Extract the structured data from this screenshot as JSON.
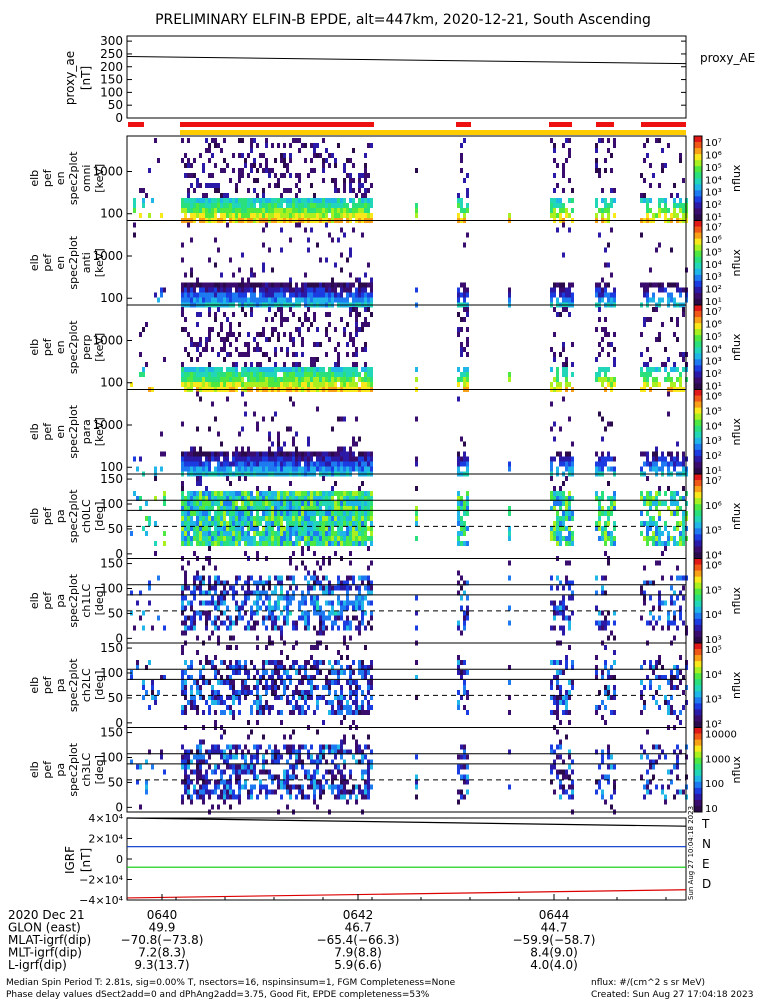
{
  "title": "PRELIMINARY ELFIN-B EPDE, alt=447km, 2020-12-21, South Ascending",
  "proxy_panel": {
    "ylabel": "proxy_ae",
    "yunit": "[nT]",
    "yticks": [
      "300",
      "250",
      "200",
      "150",
      "100",
      "50",
      "0"
    ],
    "series_label": "proxy_AE"
  },
  "spec_panels": [
    {
      "ylabel": [
        "elb",
        "pef",
        "en",
        "spec2plot",
        "omni",
        "[keV]"
      ],
      "yticks": [
        "1000",
        "100"
      ],
      "cbar_ticks": [
        "10⁷",
        "10⁶",
        "10⁵",
        "10⁴",
        "10³",
        "10²",
        "10¹"
      ],
      "cbar_label": "nflux"
    },
    {
      "ylabel": [
        "elb",
        "pef",
        "en",
        "spec2plot",
        "anti",
        "[keV]"
      ],
      "yticks": [
        "1000",
        "100"
      ],
      "cbar_ticks": [
        "10⁷",
        "10⁶",
        "10⁵",
        "10⁴",
        "10³",
        "10²",
        "10¹"
      ],
      "cbar_label": "nflux"
    },
    {
      "ylabel": [
        "elb",
        "pef",
        "en",
        "spec2plot",
        "perp",
        "[keV]"
      ],
      "yticks": [
        "1000",
        "100"
      ],
      "cbar_ticks": [
        "10⁷",
        "10⁶",
        "10⁵",
        "10⁴",
        "10³",
        "10²",
        "10¹"
      ],
      "cbar_label": "nflux"
    },
    {
      "ylabel": [
        "elb",
        "pef",
        "en",
        "spec2plot",
        "para",
        "[keV]"
      ],
      "yticks": [
        "1000",
        "100"
      ],
      "cbar_ticks": [
        "10⁶",
        "10⁵",
        "10⁴",
        "10³",
        "10²",
        "10¹"
      ],
      "cbar_label": "nflux"
    },
    {
      "ylabel": [
        "elb",
        "pef",
        "pa",
        "spec2plot",
        "ch0LC",
        "[deg]"
      ],
      "yticks": [
        "150",
        "100",
        "50",
        "0"
      ],
      "cbar_ticks": [
        "10⁷",
        "10⁶",
        "10⁵",
        "10⁴"
      ],
      "cbar_label": "nflux"
    },
    {
      "ylabel": [
        "elb",
        "pef",
        "pa",
        "spec2plot",
        "ch1LC",
        "[deg]"
      ],
      "yticks": [
        "150",
        "100",
        "50",
        "0"
      ],
      "cbar_ticks": [
        "10⁶",
        "10⁵",
        "10⁴",
        "10³"
      ],
      "cbar_label": "nflux"
    },
    {
      "ylabel": [
        "elb",
        "pef",
        "pa",
        "spec2plot",
        "ch2LC",
        "[deg]"
      ],
      "yticks": [
        "150",
        "100",
        "50",
        "0"
      ],
      "cbar_ticks": [
        "10⁵",
        "10⁴",
        "10³",
        "10²"
      ],
      "cbar_label": "nflux"
    },
    {
      "ylabel": [
        "elb",
        "pef",
        "pa",
        "spec2plot",
        "ch3LC",
        "[deg]"
      ],
      "yticks": [
        "150",
        "100",
        "50",
        "0"
      ],
      "cbar_ticks": [
        "10000",
        "1000",
        "100",
        "10"
      ],
      "cbar_label": "nflux"
    }
  ],
  "igrf_panel": {
    "ylabel": "IGRF",
    "yunit": "[nT]",
    "yticks": [
      "4×10⁴",
      "2×10⁴",
      "0",
      "−2×10⁴",
      "−4×10⁴"
    ],
    "legend": [
      {
        "label": "T",
        "color": "#000000"
      },
      {
        "label": "N",
        "color": "#0033cc"
      },
      {
        "label": "E",
        "color": "#00cc00"
      },
      {
        "label": "D",
        "color": "#dd0000"
      }
    ],
    "side_stamp": "Sun Aug 27 10:04:18 2023"
  },
  "time_axis": {
    "row_labels": [
      "2020 Dec 21",
      "GLON (east)",
      "MLAT-igrf(dip)",
      "MLT-igrf(dip)",
      "L-igrf(dip)"
    ],
    "columns": [
      {
        "values": [
          "0640",
          "49.9",
          "−70.8(−73.8)",
          "7.2(8.3)",
          "9.3(13.7)"
        ]
      },
      {
        "values": [
          "0642",
          "46.7",
          "−65.4(−66.3)",
          "7.9(8.8)",
          "5.9(6.6)"
        ]
      },
      {
        "values": [
          "0644",
          "44.7",
          "−59.9(−58.7)",
          "8.4(9.0)",
          "4.0(4.0)"
        ]
      }
    ]
  },
  "footer": {
    "line1_left": "Median Spin Period T: 2.81s, sig=0.00% T, nsectors=16, nspinsinsum=1, FGM Completeness=None",
    "line2_left": "Phase delay values dSect2add=0 and dPhAng2add=3.75, Good Fit, EPDE completeness=53%",
    "line1_right": "nflux: #/(cm^2 s sr MeV)",
    "line2_right": "Created: Sun Aug 27 17:04:18 2023"
  },
  "colors": {
    "proxy_line": "#000000",
    "red_bar": "#ee1111",
    "yellow_bar": "#ffcc00",
    "igrf_T": "#000000",
    "igrf_N": "#0033cc",
    "igrf_E": "#00cc00",
    "igrf_D": "#dd0000"
  },
  "chart_data": [
    {
      "type": "line",
      "series": [
        {
          "name": "proxy_AE",
          "x": [
            "06:39:00",
            "06:46:00"
          ],
          "values": [
            240,
            212
          ]
        }
      ],
      "ylim": [
        0,
        320
      ],
      "xlim": [
        "06:39:00",
        "06:46:00"
      ]
    },
    {
      "type": "heatmap",
      "description_series": "science-zone coverage bars",
      "red_segments_minutes": [
        [
          6.65,
          6.7
        ],
        [
          6.93,
          7.18
        ],
        [
          7.44,
          7.46
        ],
        [
          7.65,
          7.68
        ],
        [
          7.77,
          7.8
        ],
        [
          7.88,
          7.92
        ]
      ],
      "xlim": [
        "06:39:00",
        "06:46:00"
      ]
    },
    {
      "type": "line",
      "series": [
        {
          "name": "T",
          "values": [
            40000,
            32000
          ]
        },
        {
          "name": "N",
          "values": [
            12000,
            12000
          ]
        },
        {
          "name": "E",
          "values": [
            -8000,
            -8000
          ]
        },
        {
          "name": "D",
          "values": [
            -38000,
            -30000
          ]
        }
      ],
      "ylim": [
        -40000,
        40000
      ]
    }
  ]
}
